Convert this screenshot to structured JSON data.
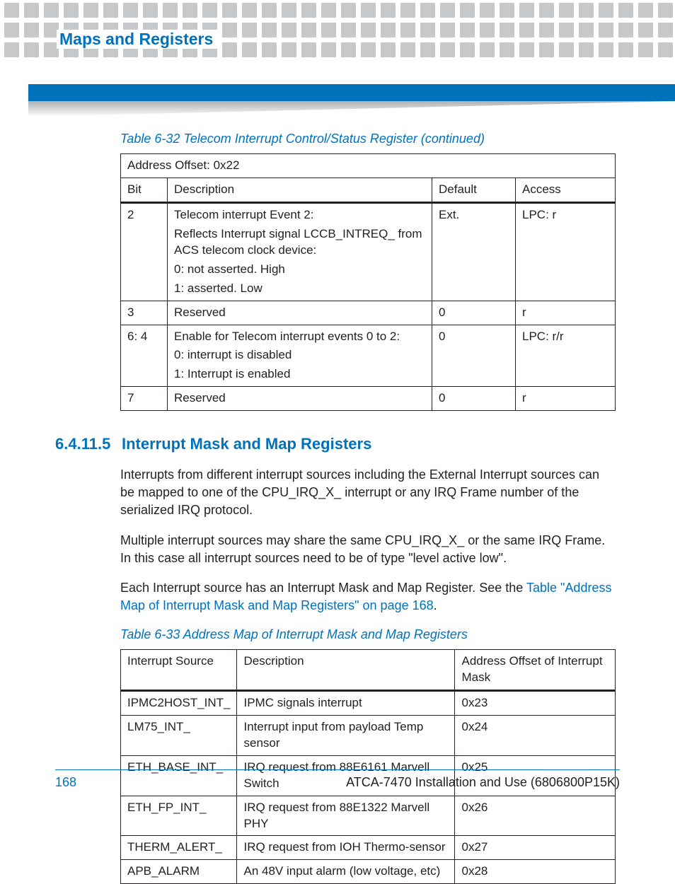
{
  "header": {
    "chapter_title": "Maps and Registers"
  },
  "table1": {
    "caption": "Table 6-32 Telecom Interrupt Control/Status Register (continued)",
    "address_offset": "Address Offset: 0x22",
    "cols": {
      "bit": "Bit",
      "desc": "Description",
      "def": "Default",
      "acc": "Access"
    },
    "rows": [
      {
        "bit": "2",
        "desc_lines": [
          "Telecom interrupt Event 2:",
          "Reflects Interrupt signal LCCB_INTREQ_ from ACS telecom clock device:",
          "0: not asserted. High",
          "1: asserted. Low"
        ],
        "def": "Ext.",
        "acc": "LPC: r"
      },
      {
        "bit": "3",
        "desc_lines": [
          "Reserved"
        ],
        "def": "0",
        "acc": "r"
      },
      {
        "bit": "6: 4",
        "desc_lines": [
          "Enable for Telecom interrupt events 0 to 2:",
          "0: interrupt is disabled",
          "1: Interrupt is enabled"
        ],
        "def": "0",
        "acc": "LPC: r/r"
      },
      {
        "bit": "7",
        "desc_lines": [
          "Reserved"
        ],
        "def": "0",
        "acc": "r"
      }
    ]
  },
  "section": {
    "number": "6.4.11.5",
    "title": "Interrupt Mask and Map Registers",
    "para1": "Interrupts from different interrupt sources including the External Interrupt sources can be mapped to one of the CPU_IRQ_X_ interrupt or any IRQ Frame number of the serialized IRQ protocol.",
    "para2": "Multiple interrupt sources may share the same CPU_IRQ_X_ or the same IRQ Frame. In this case all interrupt sources need to be of type \"level active low\".",
    "para3_pre": "Each Interrupt source has an Interrupt Mask and Map Register. See the ",
    "para3_link": "Table \"Address Map of Interrupt Mask and Map Registers\" on page 168",
    "para3_post": "."
  },
  "table2": {
    "caption": "Table 6-33 Address Map of Interrupt Mask and Map Registers",
    "cols": {
      "src": "Interrupt Source",
      "desc": "Description",
      "addr": "Address Offset of Interrupt Mask"
    },
    "rows": [
      {
        "src": "IPMC2HOST_INT_",
        "desc": "IPMC signals interrupt",
        "addr": "0x23"
      },
      {
        "src": "LM75_INT_",
        "desc": "Interrupt input from payload Temp sensor",
        "addr": "0x24"
      },
      {
        "src": "ETH_BASE_INT_",
        "desc": "IRQ request from 88E6161 Marvell Switch",
        "addr": "0x25"
      },
      {
        "src": "ETH_FP_INT_",
        "desc": "IRQ request from 88E1322 Marvell PHY",
        "addr": "0x26"
      },
      {
        "src": "THERM_ALERT_",
        "desc": "IRQ request from IOH Thermo-sensor",
        "addr": "0x27"
      },
      {
        "src": "APB_ALARM",
        "desc": "An 48V input alarm (low voltage, etc)",
        "addr": "0x28"
      }
    ]
  },
  "footer": {
    "page": "168",
    "doc": "ATCA-7470 Installation and Use (6806800P15K)"
  },
  "colors": {
    "brand_blue": "#0072bc",
    "square_gray": "#c7c8ca",
    "text": "#231f20"
  }
}
